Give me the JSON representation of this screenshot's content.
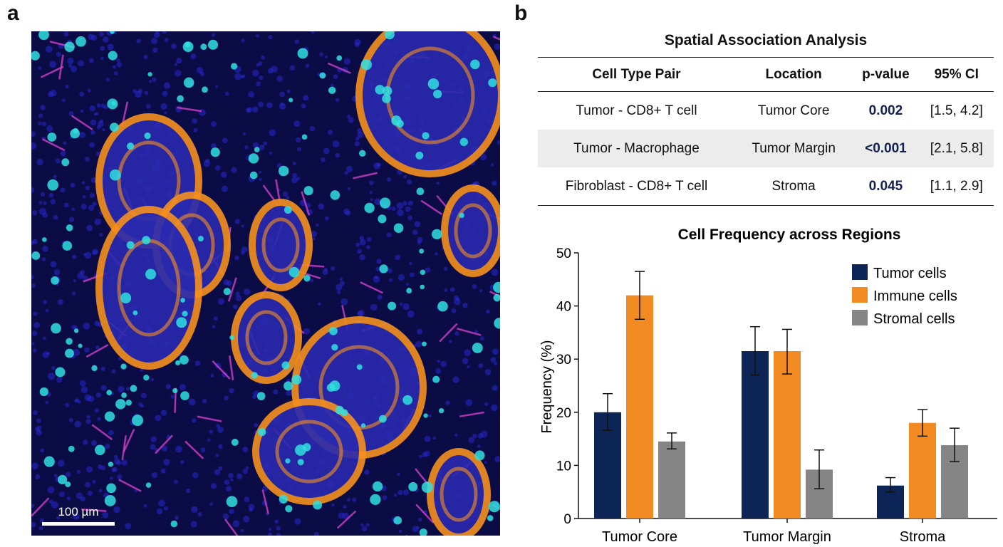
{
  "panels": {
    "a": "a",
    "b": "b"
  },
  "micrograph": {
    "scale_bar_label": "100 µm",
    "channel_colors": {
      "nuclei": "#2a2ad0",
      "tumor": "#f5901e",
      "immune": "#30e0e0",
      "stroma": "#d040c8"
    }
  },
  "table": {
    "title": "Spatial Association Analysis",
    "headers": [
      "Cell Type Pair",
      "Location",
      "p-value",
      "95% CI"
    ],
    "rows": [
      [
        "Tumor - CD8+ T cell",
        "Tumor Core",
        "0.002",
        "[1.5, 4.2]"
      ],
      [
        "Tumor - Macrophage",
        "Tumor Margin",
        "<0.001",
        "[2.1, 5.8]"
      ],
      [
        "Fibroblast - CD8+ T cell",
        "Stroma",
        "0.045",
        "[1.1, 2.9]"
      ]
    ]
  },
  "chart_data": {
    "type": "bar",
    "title": "Cell Frequency across Regions",
    "xlabel": "",
    "ylabel": "Frequency (%)",
    "ylim": [
      0,
      50
    ],
    "yticks": [
      "0",
      "10",
      "20",
      "30",
      "40",
      "50"
    ],
    "categories": [
      "Tumor Core",
      "Tumor Margin",
      "Stroma"
    ],
    "legend_position": "top-right",
    "grid": false,
    "series": [
      {
        "name": "Tumor cells",
        "color": "#0d2457",
        "values": [
          20,
          31.5,
          6.2
        ],
        "error_low": [
          16.6,
          27,
          5
        ],
        "error_high": [
          23.5,
          36.1,
          7.7
        ]
      },
      {
        "name": "Immune cells",
        "color": "#f28a22",
        "values": [
          42,
          31.5,
          18
        ],
        "error_low": [
          37.5,
          27.2,
          15.5
        ],
        "error_high": [
          46.5,
          35.6,
          20.5
        ]
      },
      {
        "name": "Stromal cells",
        "color": "#858585",
        "values": [
          14.5,
          9.2,
          13.8
        ],
        "error_low": [
          13.1,
          5.6,
          10.7
        ],
        "error_high": [
          16.1,
          12.9,
          17
        ]
      }
    ]
  }
}
